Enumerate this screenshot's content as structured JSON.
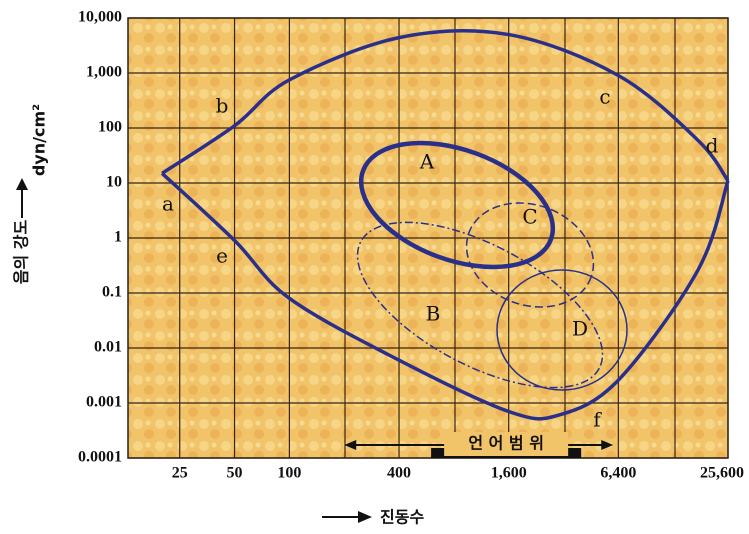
{
  "chart_data": {
    "type": "line",
    "y_label": "dyn/cm²",
    "y_title": "음의 강도",
    "x_label": "진동수",
    "log_x": true,
    "log_y": true,
    "grid": true,
    "xlim": [
      13,
      25600
    ],
    "ylim": [
      0.0001,
      10000
    ],
    "xticks": [
      25,
      50,
      100,
      400,
      {
        "value": 1600,
        "label": "1,600"
      },
      {
        "value": 6400,
        "label": "6,400"
      },
      {
        "value": 25600,
        "label": "25,600"
      }
    ],
    "yticks": [
      {
        "value": 10000,
        "label": "10,000"
      },
      {
        "value": 1000,
        "label": "1,000"
      },
      100,
      10,
      1,
      0.1,
      0.01,
      0.001,
      0.0001
    ],
    "series": [
      {
        "color": "#2a2f8a",
        "x": [
          20,
          50,
          100,
          400,
          1600,
          6400,
          17500,
          25600
        ],
        "values": [
          15,
          110,
          750,
          4400,
          5000,
          900,
          60,
          11
        ]
      },
      {
        "color": "#2a2f8a",
        "x": [
          20,
          50,
          100,
          400,
          1600,
          3000,
          6400,
          17500,
          25600
        ],
        "values": [
          15,
          0.9,
          0.08,
          0.006,
          0.0007,
          0.0006,
          0.0026,
          0.26,
          11
        ]
      }
    ],
    "curve_labels": [
      "a",
      "b",
      "c",
      "d",
      "e",
      "f"
    ],
    "region_labels": [
      "A",
      "B",
      "C",
      "D"
    ],
    "speech_range": {
      "label": "언 어 범 위",
      "arrow": [
        200,
        6000
      ],
      "bar": [
        600,
        4000
      ]
    }
  }
}
